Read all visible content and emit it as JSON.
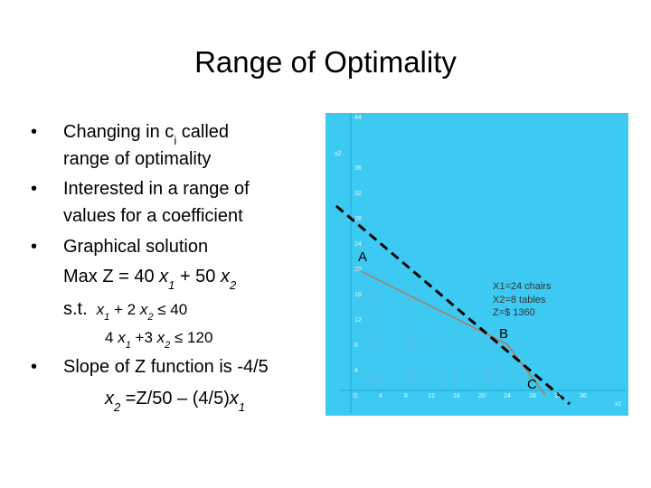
{
  "title": "Range of Optimality",
  "bullet_1": {
    "line_1": [
      "Changing in c",
      "i",
      " called"
    ],
    "line_2": "range of optimality"
  },
  "bullet_2": {
    "line_1": "Interested in a range of",
    "line_2": "values for a coefficient"
  },
  "bullet_3": {
    "line_1": "Graphical solution",
    "objective": [
      "Max Z = 40 ",
      "x",
      "1",
      " + 50 ",
      "x",
      "2"
    ],
    "constraint_1": [
      "s.t.",
      "x",
      "1",
      " + 2 ",
      "x",
      "2",
      " ≤ 40"
    ],
    "constraint_2": [
      "4 ",
      "x",
      "1",
      " +3 ",
      "x",
      "2",
      " ≤ 120"
    ]
  },
  "bullet_4": {
    "line_1": "Slope of Z function is -4/5",
    "equation": [
      "x",
      "2",
      " =Z/50 – (4/5)",
      "x",
      "1"
    ]
  },
  "graph": {
    "y_axis_label": "x2",
    "x_axis_label": "x1",
    "xticks": [
      0,
      4,
      8,
      12,
      16,
      20,
      24,
      28,
      32,
      36
    ],
    "yticks": [
      4,
      8,
      12,
      16,
      20,
      24,
      28,
      32,
      36,
      44
    ],
    "points": [
      "A",
      "B",
      "C"
    ],
    "annotation": [
      "X1=24 chairs",
      "X2=8 tables",
      "Z=$ 1360"
    ]
  }
}
